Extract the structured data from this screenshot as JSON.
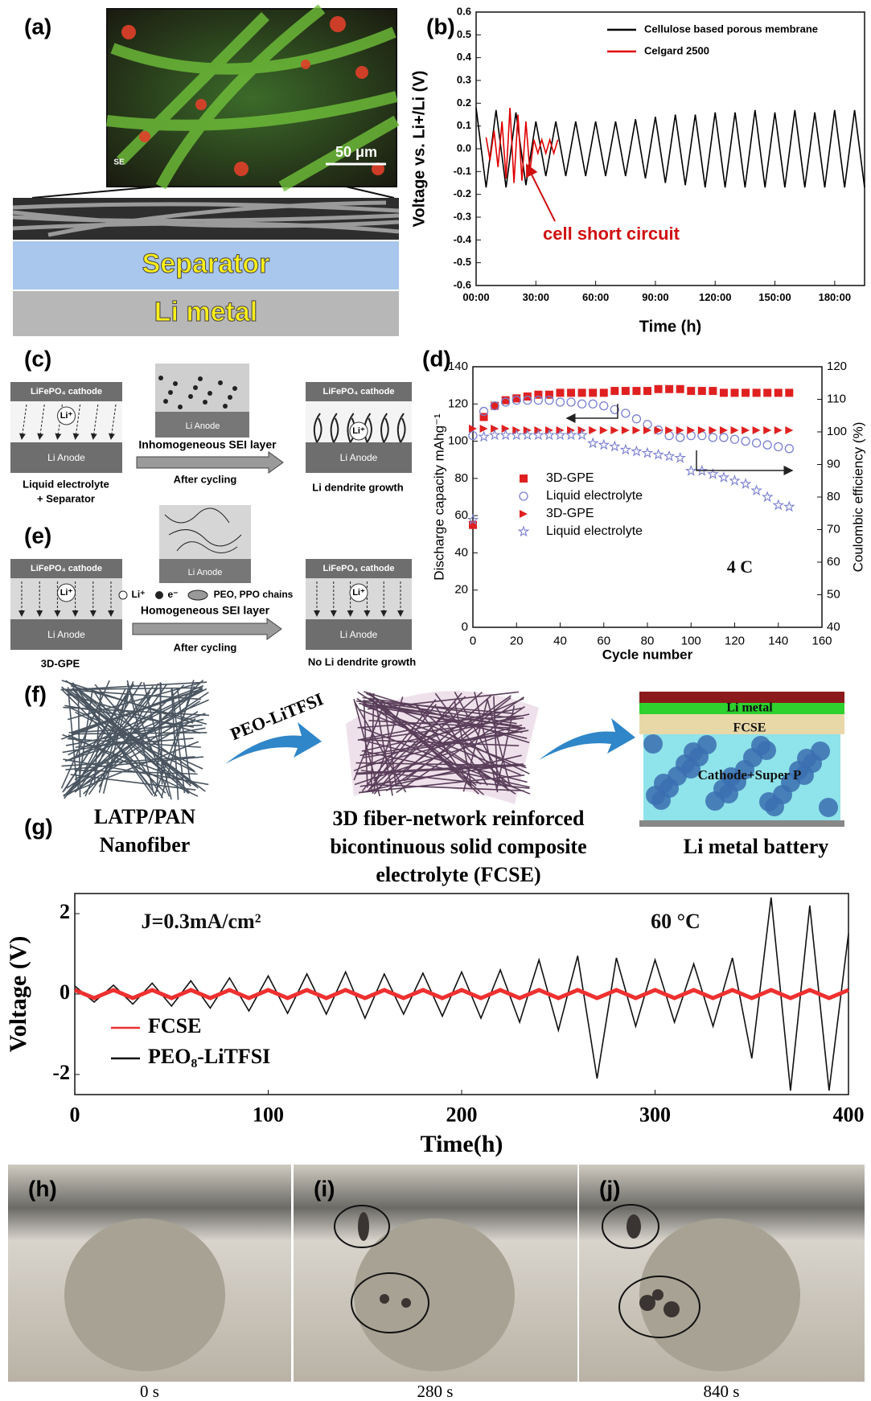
{
  "chart_data": [
    {
      "type": "line",
      "xlabel": "Time (h)",
      "ylabel": "Voltage vs. Li+/Li (V)",
      "xlim": [
        0,
        195
      ],
      "ylim": [
        -0.6,
        0.6
      ],
      "xticks": [
        {
          "value": 0,
          "label": "00:00"
        },
        {
          "value": 30,
          "label": "30:00"
        },
        {
          "value": 60,
          "label": "60:00"
        },
        {
          "value": 90,
          "label": "90:00"
        },
        {
          "value": 120,
          "label": "120:00"
        },
        {
          "value": 150,
          "label": "150:00"
        },
        {
          "value": 180,
          "label": "180:00"
        }
      ],
      "yticks": [
        -0.6,
        -0.5,
        -0.4,
        -0.3,
        -0.2,
        -0.1,
        {
          "value": 0,
          "label": "0.0"
        },
        0.1,
        0.2,
        0.3,
        0.4,
        0.5,
        0.6
      ],
      "legend": "upper right",
      "annotations": [
        "cell short circuit"
      ],
      "series": [
        {
          "name": "Cellulose based porous membrane",
          "color": "#000000",
          "x": [
            0,
            5,
            10,
            15,
            20,
            25,
            30,
            35,
            40,
            45,
            50,
            55,
            60,
            65,
            70,
            75,
            80,
            85,
            90,
            95,
            100,
            105,
            110,
            115,
            120,
            125,
            130,
            135,
            140,
            145,
            150,
            155,
            160,
            165,
            170,
            175,
            180,
            185,
            190,
            195
          ],
          "values": [
            0.18,
            -0.17,
            0.17,
            -0.17,
            0.16,
            -0.16,
            0.12,
            -0.12,
            0.12,
            -0.12,
            0.12,
            -0.12,
            0.12,
            -0.12,
            0.12,
            -0.12,
            0.13,
            -0.13,
            0.14,
            -0.15,
            0.15,
            -0.16,
            0.15,
            -0.17,
            0.16,
            -0.17,
            0.16,
            -0.17,
            0.17,
            -0.17,
            0.16,
            -0.17,
            0.17,
            -0.17,
            0.16,
            -0.17,
            0.17,
            -0.17,
            0.17,
            -0.17
          ]
        },
        {
          "name": "Celgard 2500",
          "color": "#e00000",
          "x": [
            5,
            7,
            9,
            11,
            13,
            15,
            17,
            19,
            21,
            23,
            25,
            27,
            29,
            31,
            33,
            35,
            37,
            39,
            41
          ],
          "values": [
            0.05,
            -0.05,
            0.08,
            -0.08,
            0.12,
            -0.13,
            0.18,
            -0.15,
            0.15,
            -0.14,
            0.12,
            -0.1,
            0.04,
            -0.02,
            0.04,
            -0.02,
            0.04,
            -0.02,
            0.04
          ]
        }
      ]
    },
    {
      "type": "scatter",
      "xlabel": "Cycle number",
      "ylabel": "Discharge capacity mAhg⁻¹",
      "y2label": "Coulombic efficiency (%)",
      "xlim": [
        0,
        160
      ],
      "ylim": [
        0,
        140
      ],
      "y2lim": [
        40,
        120
      ],
      "xticks": [
        0,
        20,
        40,
        60,
        80,
        100,
        120,
        140,
        160
      ],
      "yticks": [
        0,
        20,
        40,
        60,
        80,
        100,
        120,
        140
      ],
      "y2ticks": [
        40,
        50,
        60,
        70,
        80,
        90,
        100,
        110,
        120
      ],
      "legend": "center left",
      "annotations": [
        "4 C"
      ],
      "x": [
        0,
        5,
        10,
        15,
        20,
        25,
        30,
        35,
        40,
        45,
        50,
        55,
        60,
        65,
        70,
        75,
        80,
        85,
        90,
        95,
        100,
        105,
        110,
        115,
        120,
        125,
        130,
        135,
        140,
        145
      ],
      "series": [
        {
          "name": "3D-GPE",
          "color": "#e02020",
          "marker": "square",
          "values": [
            55,
            113,
            119,
            122,
            123,
            124,
            125,
            125,
            126,
            126,
            126,
            126,
            126,
            127,
            127,
            127,
            127,
            128,
            128,
            128,
            127,
            127,
            127,
            126,
            126,
            126,
            126,
            126,
            126,
            126
          ]
        },
        {
          "name": "Liquid electrolyte",
          "color": "#7a7fd0",
          "marker": "circle",
          "values": [
            103,
            116,
            119,
            121,
            122,
            122,
            122,
            122,
            121,
            121,
            120,
            120,
            119,
            117,
            115,
            112,
            109,
            106,
            103,
            102,
            103,
            103,
            102,
            102,
            101,
            100,
            99,
            98,
            97,
            96
          ]
        },
        {
          "name": "3D-GPE",
          "color": "#e02020",
          "marker": "triangle",
          "axis": "y2",
          "values": [
            101,
            101,
            101,
            101,
            100.5,
            100.5,
            100.5,
            100.5,
            100.5,
            100.5,
            100.5,
            100.5,
            100.5,
            100.5,
            100.5,
            100.5,
            100.5,
            100.5,
            100.5,
            100.5,
            100.5,
            100.5,
            100.5,
            100.5,
            100.5,
            100.5,
            100.5,
            100.5,
            100.5,
            100.5
          ]
        },
        {
          "name": "Liquid electrolyte",
          "color": "#7a7fd0",
          "marker": "star",
          "axis": "y2",
          "values": [
            73,
            98.5,
            99,
            99,
            99,
            99,
            99,
            99,
            99,
            99,
            99,
            96.5,
            96,
            95.5,
            94.5,
            94,
            93.5,
            93,
            92.5,
            92,
            88,
            88,
            87,
            86,
            85,
            84,
            82,
            80,
            77.5,
            77
          ]
        }
      ]
    },
    {
      "type": "line",
      "xlabel": "Time(h)",
      "ylabel": "Voltage (V)",
      "xlim": [
        0,
        400
      ],
      "ylim": [
        -2.5,
        2.5
      ],
      "xticks": [
        0,
        100,
        200,
        300,
        400
      ],
      "yticks": [
        -2,
        0,
        2
      ],
      "legend": "lower left",
      "annotations": [
        "J=0.3mA/cm²",
        "60 °C"
      ],
      "series": [
        {
          "name": "PEO₈-LiTFSI",
          "color": "#111111",
          "x": [
            0,
            10,
            20,
            30,
            40,
            50,
            60,
            70,
            80,
            90,
            100,
            110,
            120,
            130,
            140,
            150,
            160,
            170,
            180,
            190,
            200,
            210,
            220,
            230,
            240,
            250,
            260,
            270,
            280,
            290,
            300,
            310,
            320,
            330,
            340,
            350,
            360,
            370,
            380,
            390,
            400
          ],
          "values": [
            0.2,
            -0.2,
            0.22,
            -0.25,
            0.27,
            -0.3,
            0.33,
            -0.35,
            0.4,
            -0.42,
            0.45,
            -0.48,
            0.5,
            -0.5,
            0.55,
            -0.6,
            0.5,
            -0.5,
            0.52,
            -0.55,
            0.55,
            -0.6,
            0.6,
            -0.7,
            0.85,
            -0.9,
            0.95,
            -2.1,
            0.9,
            -0.8,
            0.85,
            -0.7,
            0.75,
            -0.8,
            0.9,
            -1.6,
            2.4,
            -2.4,
            2.2,
            -2.4,
            1.5
          ]
        },
        {
          "name": "FCSE",
          "color": "#ee3030",
          "x": [
            0,
            10,
            20,
            30,
            40,
            50,
            60,
            70,
            80,
            90,
            100,
            110,
            120,
            130,
            140,
            150,
            160,
            170,
            180,
            190,
            200,
            210,
            220,
            230,
            240,
            250,
            260,
            270,
            280,
            290,
            300,
            310,
            320,
            330,
            340,
            350,
            360,
            370,
            380,
            390,
            400
          ],
          "values": [
            0.1,
            -0.1,
            0.1,
            -0.1,
            0.1,
            -0.1,
            0.1,
            -0.1,
            0.1,
            -0.1,
            0.1,
            -0.1,
            0.1,
            -0.1,
            0.1,
            -0.1,
            0.1,
            -0.1,
            0.1,
            -0.1,
            0.1,
            -0.1,
            0.1,
            -0.1,
            0.1,
            -0.1,
            0.1,
            -0.1,
            0.1,
            -0.1,
            0.1,
            -0.1,
            0.1,
            -0.1,
            0.1,
            -0.1,
            0.1,
            -0.1,
            0.1,
            -0.1,
            0.1
          ]
        }
      ]
    }
  ],
  "figure": {
    "panel_labels": [
      "(a)",
      "(b)",
      "(c)",
      "(d)",
      "(e)",
      "(f)",
      "(g)",
      "(h)",
      "(i)",
      "(j)"
    ],
    "a": {
      "channel": "SE",
      "scale_bar": "50 μm",
      "separator": "Separator",
      "li_metal": "Li metal"
    },
    "c": {
      "left": {
        "cathode": "LiFePO₄ cathode",
        "ion": "Li⁺",
        "anode": "Li Anode",
        "caption": [
          "Liquid electrolyte",
          "+ Separator"
        ]
      },
      "middle": {
        "anode": "Li Anode",
        "sei": "Inhomogeneous SEI layer",
        "step": "After cycling"
      },
      "right": {
        "cathode": "LiFePO₄ cathode",
        "ion": "Li⁺",
        "anode": "Li Anode",
        "caption": [
          "Li dendrite growth"
        ]
      }
    },
    "d": {
      "left": {
        "cathode": "LiFePO₄ cathode",
        "ion": "Li⁺",
        "anode": "Li Anode",
        "caption": [
          "3D-GPE"
        ]
      },
      "middle": {
        "anode": "Li Anode",
        "key": [
          "Li⁺",
          "e⁻",
          "PEO, PPO chains"
        ],
        "sei": "Homogeneous SEI layer",
        "step": "After cycling"
      },
      "right": {
        "cathode": "LiFePO₄ cathode",
        "ion": "Li⁺",
        "anode": "Li Anode",
        "caption": [
          "No Li dendrite growth"
        ]
      }
    },
    "f": {
      "process": "PEO-LiTFSI",
      "start": [
        "LATP/PAN",
        "Nanofiber"
      ],
      "middle": [
        "3D fiber-network reinforced",
        "bicontinuous solid composite",
        "electrolyte (FCSE)"
      ],
      "end": [
        "Li metal battery"
      ],
      "layers": [
        "Li metal",
        "FCSE",
        "Cathode+Super P"
      ]
    },
    "photos": [
      "0 s",
      "280 s",
      "840 s"
    ]
  }
}
